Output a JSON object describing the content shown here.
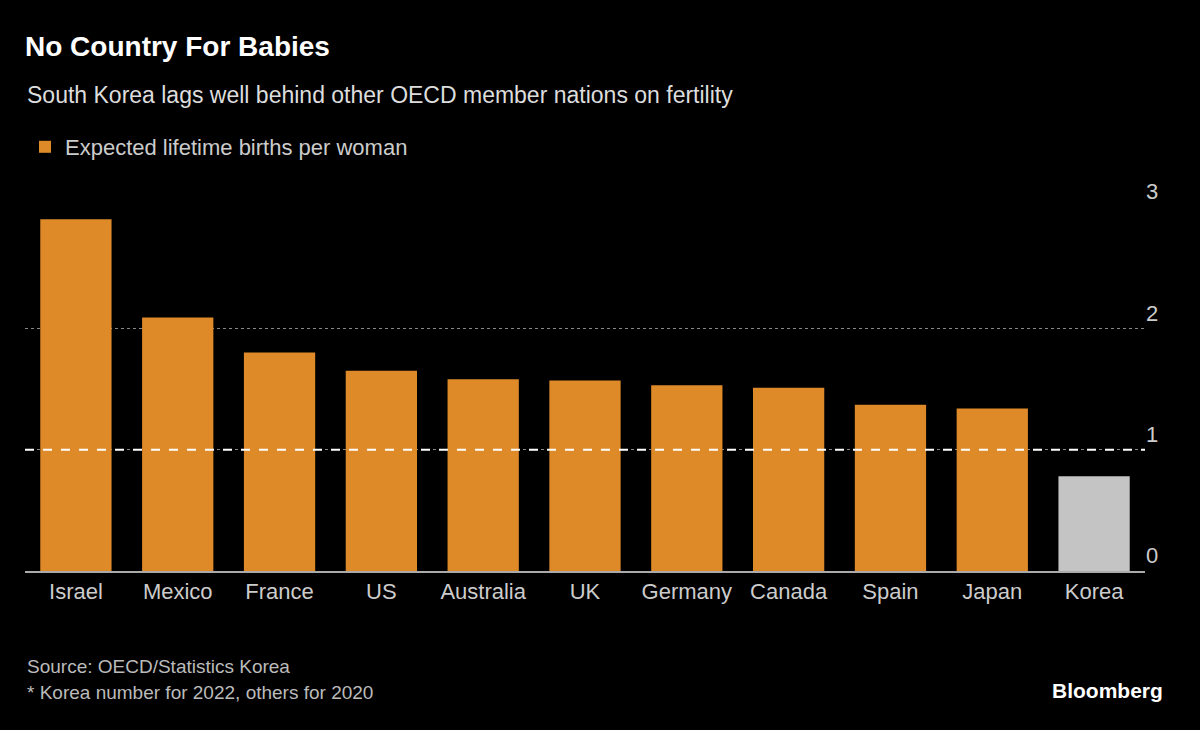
{
  "chart_data": {
    "type": "bar",
    "title": "No Country For Babies",
    "subtitle": "South Korea lags well behind other OECD member nations on fertility",
    "categories": [
      "Israel",
      "Mexico",
      "France",
      "US",
      "Australia",
      "UK",
      "Germany",
      "Canada",
      "Spain",
      "Japan",
      "Korea"
    ],
    "series": [
      {
        "name": "Expected lifetime births per woman",
        "values": [
          2.9,
          2.09,
          1.8,
          1.65,
          1.58,
          1.57,
          1.53,
          1.51,
          1.37,
          1.34,
          0.78
        ],
        "colors": [
          "#de8a29",
          "#de8a29",
          "#de8a29",
          "#de8a29",
          "#de8a29",
          "#de8a29",
          "#de8a29",
          "#de8a29",
          "#de8a29",
          "#de8a29",
          "#c4c4c4"
        ]
      }
    ],
    "ylim": [
      0,
      3
    ],
    "yticks": [
      0,
      1,
      2,
      3
    ],
    "grid": true,
    "legend": "top left",
    "reference_value": 1,
    "source": "Source: OECD/Statistics Korea",
    "note": "* Korea number for 2022, others for 2020",
    "credit": "Bloomberg"
  }
}
